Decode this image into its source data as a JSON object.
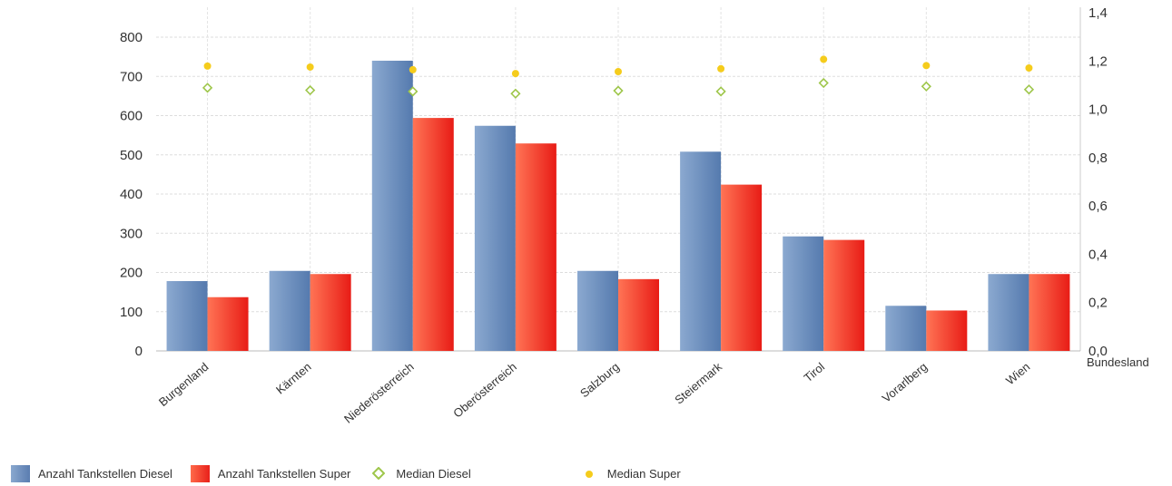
{
  "chart_data": {
    "type": "bar",
    "categories": [
      "Burgenland",
      "Kärnten",
      "Niederösterreich",
      "Oberösterreich",
      "Salzburg",
      "Steiermark",
      "Tirol",
      "Vorarlberg",
      "Wien"
    ],
    "series": [
      {
        "name": "Anzahl Tankstellen Diesel",
        "type": "bar",
        "axis": "left",
        "color": "#6a8ec2",
        "values": [
          178,
          204,
          740,
          574,
          204,
          508,
          292,
          115,
          196
        ]
      },
      {
        "name": "Anzahl Tankstellen Super",
        "type": "bar",
        "axis": "left",
        "color": "#f2301f",
        "values": [
          137,
          196,
          594,
          529,
          183,
          424,
          283,
          103,
          196
        ]
      },
      {
        "name": "Median Diesel",
        "type": "marker",
        "axis": "right",
        "marker": "diamond",
        "color": "#9ec64a",
        "values": [
          1.089,
          1.079,
          1.074,
          1.065,
          1.077,
          1.074,
          1.109,
          1.095,
          1.082
        ]
      },
      {
        "name": "Median Super",
        "type": "marker",
        "axis": "right",
        "marker": "circle",
        "color": "#f5cc1c",
        "values": [
          1.179,
          1.175,
          1.164,
          1.148,
          1.156,
          1.168,
          1.207,
          1.181,
          1.171
        ]
      }
    ],
    "left_axis": {
      "ticks": [
        "0",
        "100",
        "200",
        "300",
        "400",
        "500",
        "600",
        "700",
        "800"
      ],
      "range": [
        0,
        880
      ]
    },
    "right_axis": {
      "ticks": [
        "0,0",
        "0,2",
        "0,4",
        "0,6",
        "0,8",
        "1,0",
        "1,2",
        "1,4"
      ],
      "range": [
        0,
        1.4
      ]
    },
    "xlabel": "Bundesland",
    "grid": true,
    "legend_position": "bottom"
  }
}
